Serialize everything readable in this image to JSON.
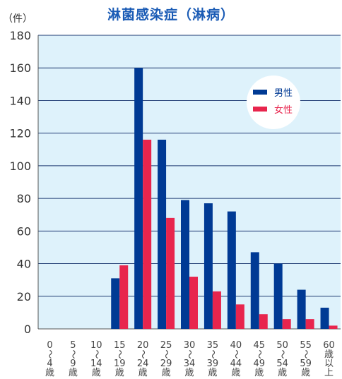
{
  "title": "淋菌感染症（淋病）",
  "unit_label": "（件）",
  "colors": {
    "male": "#003a94",
    "female": "#e8254d",
    "plot_bg": "#def2fb",
    "grid": "#1f3b73",
    "axis": "#555555"
  },
  "legend": {
    "male": "男性",
    "female": "女性"
  },
  "chart_data": {
    "type": "bar",
    "title": "淋菌感染症（淋病）",
    "ylabel": "（件）",
    "ylim": [
      0,
      180
    ],
    "yticks": [
      0,
      20,
      40,
      60,
      80,
      100,
      120,
      140,
      160,
      180
    ],
    "grid": true,
    "legend_position": "top-right",
    "categories": [
      [
        "0",
        "〜",
        "4",
        "歳"
      ],
      [
        "5",
        "〜",
        "9",
        "歳"
      ],
      [
        "10",
        "〜",
        "14",
        "歳"
      ],
      [
        "15",
        "〜",
        "19",
        "歳"
      ],
      [
        "20",
        "〜",
        "24",
        "歳"
      ],
      [
        "25",
        "〜",
        "29",
        "歳"
      ],
      [
        "30",
        "〜",
        "34",
        "歳"
      ],
      [
        "35",
        "〜",
        "39",
        "歳"
      ],
      [
        "40",
        "〜",
        "44",
        "歳"
      ],
      [
        "45",
        "〜",
        "49",
        "歳"
      ],
      [
        "50",
        "〜",
        "54",
        "歳"
      ],
      [
        "55",
        "〜",
        "59",
        "歳"
      ],
      [
        "60",
        "歳",
        "以",
        "上"
      ]
    ],
    "series": [
      {
        "name": "男性",
        "values": [
          0,
          0,
          0,
          31,
          160,
          116,
          79,
          77,
          72,
          47,
          40,
          24,
          13
        ]
      },
      {
        "name": "女性",
        "values": [
          0,
          0,
          0,
          39,
          116,
          68,
          32,
          23,
          15,
          9,
          6,
          6,
          2
        ]
      }
    ]
  }
}
